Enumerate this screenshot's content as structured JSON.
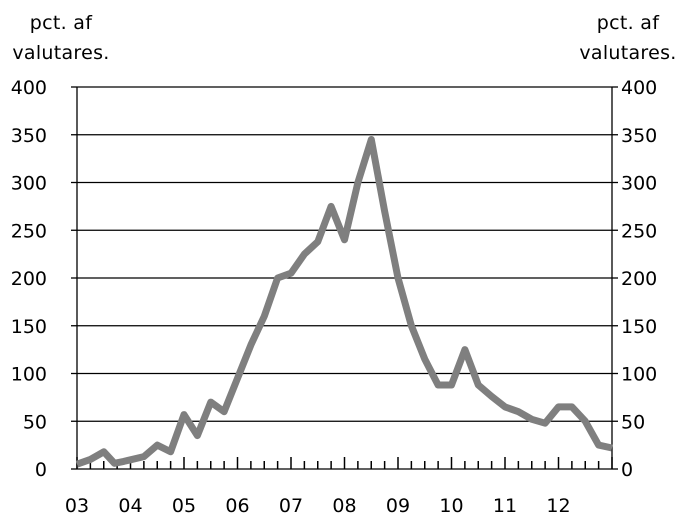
{
  "chart_data": {
    "type": "line",
    "title": "",
    "ylabel_left": "pct. af valutares.",
    "ylabel_right": "pct. af valutares.",
    "ylim": [
      0,
      400
    ],
    "yticks": [
      0,
      50,
      100,
      150,
      200,
      250,
      300,
      350,
      400
    ],
    "xlim": [
      0,
      40
    ],
    "xtick_labels": [
      "03",
      "04",
      "05",
      "06",
      "07",
      "08",
      "09",
      "10",
      "11",
      "12"
    ],
    "xtick_positions": [
      0,
      4,
      8,
      12,
      16,
      20,
      24,
      28,
      32,
      36
    ],
    "grid": true,
    "series": [
      {
        "color": "#7f7f7f",
        "x": [
          0,
          1,
          2,
          2.8,
          3.5,
          5,
          6,
          7,
          8,
          9,
          10,
          11,
          12,
          13,
          14,
          15,
          16,
          17,
          18,
          19,
          20,
          21,
          22,
          23,
          24,
          25,
          26,
          27,
          28,
          29,
          30,
          31,
          32,
          33,
          34,
          35,
          36,
          37,
          38,
          39,
          40
        ],
        "y": [
          5,
          10,
          18,
          6,
          8,
          13,
          25,
          18,
          57,
          35,
          70,
          60,
          95,
          130,
          160,
          200,
          205,
          225,
          238,
          275,
          240,
          300,
          345,
          270,
          200,
          150,
          115,
          88,
          88,
          125,
          88,
          76,
          65,
          60,
          52,
          48,
          65,
          65,
          50,
          25,
          22
        ]
      }
    ]
  }
}
